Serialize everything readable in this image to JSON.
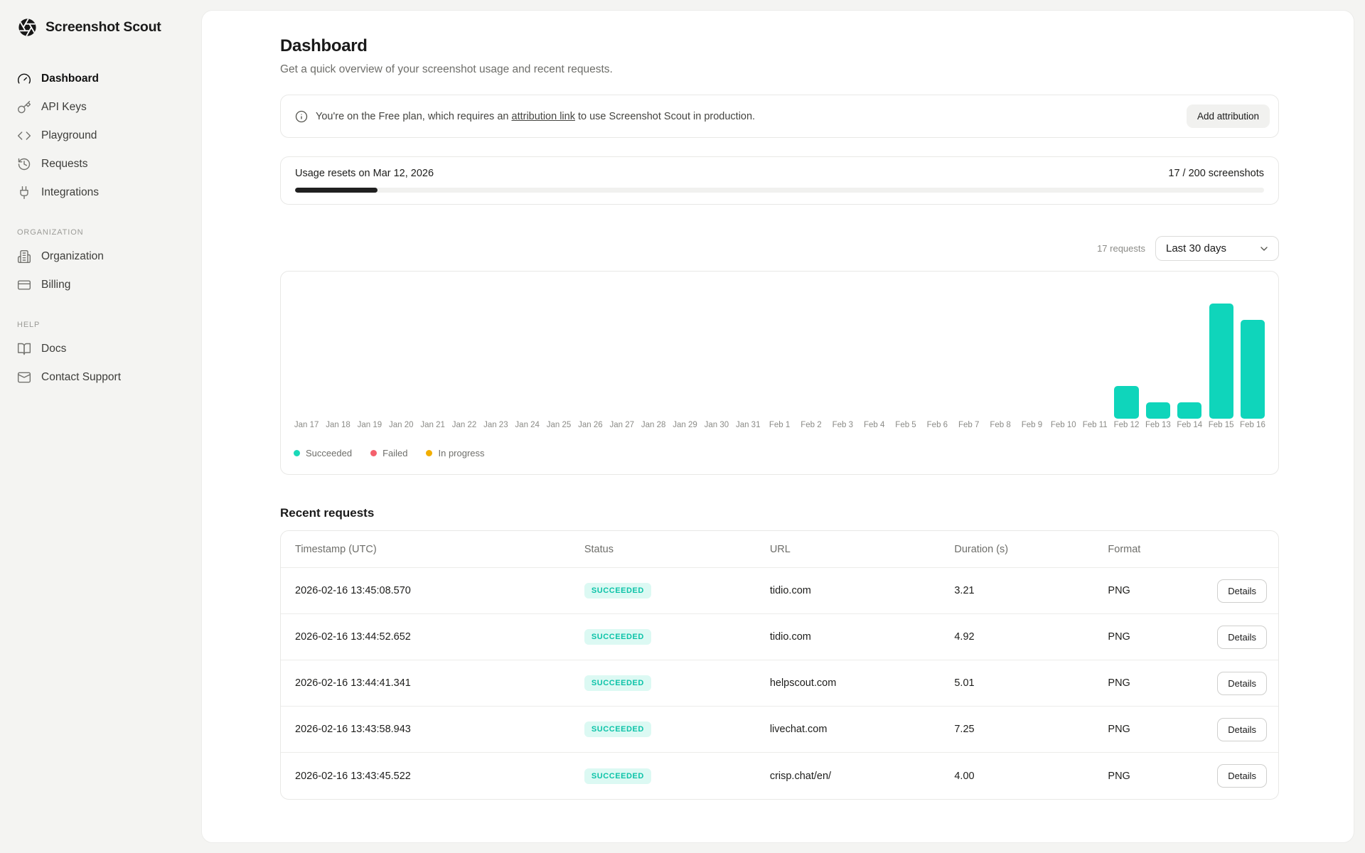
{
  "app": {
    "name": "Screenshot Scout"
  },
  "sidebar": {
    "sections": [
      {
        "label": null,
        "items": [
          {
            "label": "Dashboard",
            "icon": "gauge-icon",
            "active": true
          },
          {
            "label": "API Keys",
            "icon": "key-icon"
          },
          {
            "label": "Playground",
            "icon": "code-icon"
          },
          {
            "label": "Requests",
            "icon": "history-icon"
          },
          {
            "label": "Integrations",
            "icon": "plug-icon"
          }
        ]
      },
      {
        "label": "ORGANIZATION",
        "items": [
          {
            "label": "Organization",
            "icon": "building-icon"
          },
          {
            "label": "Billing",
            "icon": "credit-card-icon"
          }
        ]
      },
      {
        "label": "HELP",
        "items": [
          {
            "label": "Docs",
            "icon": "book-icon"
          },
          {
            "label": "Contact Support",
            "icon": "mail-icon"
          }
        ]
      }
    ]
  },
  "header": {
    "title": "Dashboard",
    "subtitle": "Get a quick overview of your screenshot usage and recent requests."
  },
  "banner": {
    "text_before": "You're on the Free plan, which requires an ",
    "link_text": "attribution link",
    "text_after": " to use Screenshot Scout in production.",
    "button_label": "Add attribution"
  },
  "usage": {
    "reset_text": "Usage resets on Mar 12, 2026",
    "count_text": "17 / 200 screenshots",
    "used": 17,
    "limit": 200
  },
  "toolbar": {
    "requests_count": "17 requests",
    "range_value": "Last 30 days"
  },
  "chart_data": {
    "type": "bar",
    "title": "",
    "xlabel": "",
    "ylabel": "",
    "categories": [
      "Jan 17",
      "Jan 18",
      "Jan 19",
      "Jan 20",
      "Jan 21",
      "Jan 22",
      "Jan 23",
      "Jan 24",
      "Jan 25",
      "Jan 26",
      "Jan 27",
      "Jan 28",
      "Jan 29",
      "Jan 30",
      "Jan 31",
      "Feb 1",
      "Feb 2",
      "Feb 3",
      "Feb 4",
      "Feb 5",
      "Feb 6",
      "Feb 7",
      "Feb 8",
      "Feb 9",
      "Feb 10",
      "Feb 11",
      "Feb 12",
      "Feb 13",
      "Feb 14",
      "Feb 15",
      "Feb 16"
    ],
    "series": [
      {
        "name": "Succeeded",
        "values": [
          0,
          0,
          0,
          0,
          0,
          0,
          0,
          0,
          0,
          0,
          0,
          0,
          0,
          0,
          0,
          0,
          0,
          0,
          0,
          0,
          0,
          0,
          0,
          0,
          0,
          0,
          2,
          1,
          1,
          7,
          6
        ]
      }
    ],
    "ylim": [
      0,
      7
    ],
    "grid": false,
    "bar_color": "#0fd5bb",
    "legend_position": "bottom-left",
    "legend": [
      {
        "label": "Succeeded",
        "color": "#19d9b8"
      },
      {
        "label": "Failed",
        "color": "#f4606c"
      },
      {
        "label": "In progress",
        "color": "#f2ae00"
      }
    ]
  },
  "recent": {
    "title": "Recent requests",
    "columns": [
      "Timestamp (UTC)",
      "Status",
      "URL",
      "Duration (s)",
      "Format"
    ],
    "details_label": "Details",
    "rows": [
      {
        "timestamp": "2026-02-16 13:45:08.570",
        "status": "SUCCEEDED",
        "url": "tidio.com",
        "duration": "3.21",
        "format": "PNG"
      },
      {
        "timestamp": "2026-02-16 13:44:52.652",
        "status": "SUCCEEDED",
        "url": "tidio.com",
        "duration": "4.92",
        "format": "PNG"
      },
      {
        "timestamp": "2026-02-16 13:44:41.341",
        "status": "SUCCEEDED",
        "url": "helpscout.com",
        "duration": "5.01",
        "format": "PNG"
      },
      {
        "timestamp": "2026-02-16 13:43:58.943",
        "status": "SUCCEEDED",
        "url": "livechat.com",
        "duration": "7.25",
        "format": "PNG"
      },
      {
        "timestamp": "2026-02-16 13:43:45.522",
        "status": "SUCCEEDED",
        "url": "crisp.chat/en/",
        "duration": "4.00",
        "format": "PNG"
      }
    ]
  },
  "colors": {
    "accent_teal": "#0fd5bb",
    "badge_bg": "#dcf9f3",
    "badge_text": "#0cc3a8",
    "failed_red": "#f4606c",
    "in_progress_amber": "#f2ae00",
    "progress_fill": "#202020"
  }
}
